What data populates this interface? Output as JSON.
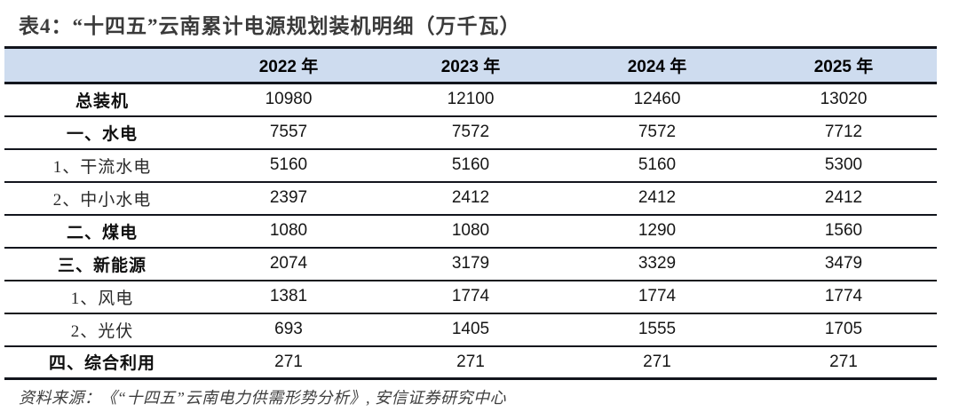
{
  "title": "表4：“十四五”云南累计电源规划装机明细（万千瓦）",
  "colors": {
    "header_bg": "#CEDCEF",
    "border": "#12151D",
    "title_text": "#3A3A3A"
  },
  "table": {
    "columns": [
      "2022 年",
      "2023 年",
      "2024 年",
      "2025 年"
    ],
    "rows": [
      {
        "label": "总装机",
        "values": [
          "10980",
          "12100",
          "12460",
          "13020"
        ]
      },
      {
        "label": "一、水电",
        "values": [
          "7557",
          "7572",
          "7572",
          "7712"
        ]
      },
      {
        "label": "1、干流水电",
        "values": [
          "5160",
          "5160",
          "5160",
          "5300"
        ]
      },
      {
        "label": "2、中小水电",
        "values": [
          "2397",
          "2412",
          "2412",
          "2412"
        ]
      },
      {
        "label": "二、煤电",
        "values": [
          "1080",
          "1080",
          "1290",
          "1560"
        ]
      },
      {
        "label": "三、新能源",
        "values": [
          "2074",
          "3179",
          "3329",
          "3479"
        ]
      },
      {
        "label": "1、风电",
        "values": [
          "1381",
          "1774",
          "1774",
          "1774"
        ]
      },
      {
        "label": "2、光伏",
        "values": [
          "693",
          "1405",
          "1555",
          "1705"
        ]
      },
      {
        "label": "四、综合利用",
        "values": [
          "271",
          "271",
          "271",
          "271"
        ]
      }
    ]
  },
  "footer": "资料来源：《“十四五”云南电力供需形势分析》, 安信证券研究中心"
}
